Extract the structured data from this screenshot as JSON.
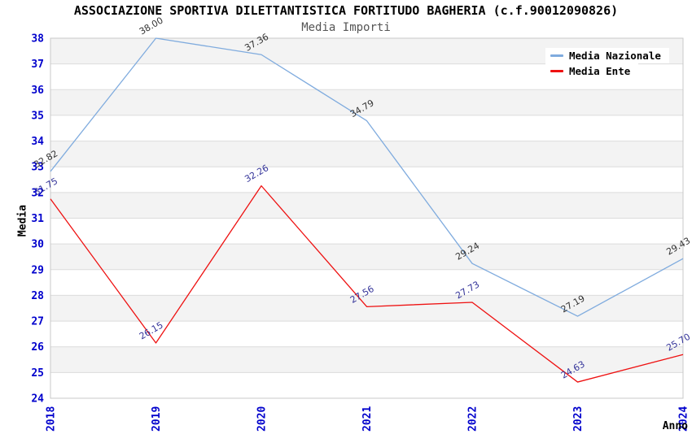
{
  "title": "ASSOCIAZIONE SPORTIVA DILETTANTISTICA FORTITUDO BAGHERIA (c.f.90012090826)",
  "subtitle": "Media Importi",
  "legend": {
    "items": [
      {
        "label": "Media Nazionale",
        "color": "#7fabde"
      },
      {
        "label": "Media Ente",
        "color": "#ee1111"
      }
    ]
  },
  "chart_data": {
    "type": "line",
    "title": "ASSOCIAZIONE SPORTIVA DILETTANTISTICA FORTITUDO BAGHERIA (c.f.90012090826)",
    "subtitle": "Media Importi",
    "xlabel": "Anno",
    "ylabel": "Media",
    "x": [
      "2018",
      "2019",
      "2020",
      "2021",
      "2022",
      "2023",
      "2024"
    ],
    "series": [
      {
        "name": "Media Nazionale",
        "color": "#7fabde",
        "label_color": "#333333",
        "values": [
          32.82,
          38.0,
          37.36,
          34.79,
          29.24,
          27.19,
          29.43
        ]
      },
      {
        "name": "Media Ente",
        "color": "#ee1111",
        "label_color": "#333399",
        "values": [
          31.75,
          26.15,
          32.26,
          27.56,
          27.73,
          24.63,
          25.7
        ]
      }
    ],
    "ylim": [
      24,
      38
    ],
    "y_tick_step": 1,
    "grid": true,
    "legend_position": "top-right",
    "band_fill": "#f3f3f3",
    "grid_color": "#dcdcdc",
    "border_color": "#c8c8c8",
    "tick_label_color": "#0000cc"
  }
}
